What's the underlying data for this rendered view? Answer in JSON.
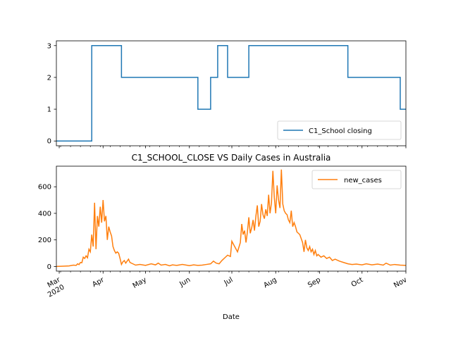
{
  "colors": {
    "school": "#1f77b4",
    "cases": "#ff7f0e",
    "axis": "#000000",
    "legend_border": "#cccccc"
  },
  "chart_data": [
    {
      "type": "line",
      "title": "",
      "xlabel": "",
      "ylabel": "",
      "x_range": [
        "2020-02-28",
        "2020-11-01"
      ],
      "ylim": [
        -0.15,
        3.15
      ],
      "yticks": [
        0,
        1,
        2,
        3
      ],
      "grid": false,
      "legend": "lower-right",
      "series": [
        {
          "name": "C1_School closing",
          "color": "#1f77b4",
          "step": true,
          "points": [
            [
              "2020-02-28",
              0
            ],
            [
              "2020-03-24",
              0
            ],
            [
              "2020-03-24",
              3
            ],
            [
              "2020-04-14",
              3
            ],
            [
              "2020-04-14",
              2
            ],
            [
              "2020-06-07",
              2
            ],
            [
              "2020-06-07",
              1
            ],
            [
              "2020-06-16",
              1
            ],
            [
              "2020-06-16",
              2
            ],
            [
              "2020-06-21",
              2
            ],
            [
              "2020-06-21",
              3
            ],
            [
              "2020-06-28",
              3
            ],
            [
              "2020-06-28",
              2
            ],
            [
              "2020-07-13",
              2
            ],
            [
              "2020-07-13",
              3
            ],
            [
              "2020-09-21",
              3
            ],
            [
              "2020-09-21",
              2
            ],
            [
              "2020-10-28",
              2
            ],
            [
              "2020-10-28",
              1
            ],
            [
              "2020-11-01",
              1
            ]
          ]
        }
      ]
    },
    {
      "type": "line",
      "title": "C1_SCHOOL_CLOSE VS Daily Cases in Australia",
      "xlabel": "Date",
      "ylabel": "",
      "x_range": [
        "2020-02-28",
        "2020-11-01"
      ],
      "ylim": [
        -35,
        755
      ],
      "yticks": [
        0,
        200,
        400,
        600
      ],
      "grid": false,
      "legend": "top-right",
      "x_tick_labels": [
        {
          "date": "2020-03-01",
          "label": "Mar",
          "sub": "2020"
        },
        {
          "date": "2020-04-01",
          "label": "Apr"
        },
        {
          "date": "2020-05-01",
          "label": "May"
        },
        {
          "date": "2020-06-01",
          "label": "Jun"
        },
        {
          "date": "2020-07-01",
          "label": "Jul"
        },
        {
          "date": "2020-08-01",
          "label": "Aug"
        },
        {
          "date": "2020-09-01",
          "label": "Sep"
        },
        {
          "date": "2020-10-01",
          "label": "Oct"
        },
        {
          "date": "2020-11-01",
          "label": "Nov"
        }
      ],
      "series": [
        {
          "name": "new_cases",
          "color": "#ff7f0e",
          "points": [
            [
              "2020-02-28",
              0
            ],
            [
              "2020-03-04",
              2
            ],
            [
              "2020-03-08",
              4
            ],
            [
              "2020-03-11",
              10
            ],
            [
              "2020-03-13",
              8
            ],
            [
              "2020-03-14",
              20
            ],
            [
              "2020-03-15",
              14
            ],
            [
              "2020-03-16",
              30
            ],
            [
              "2020-03-17",
              28
            ],
            [
              "2020-03-18",
              70
            ],
            [
              "2020-03-19",
              60
            ],
            [
              "2020-03-20",
              80
            ],
            [
              "2020-03-21",
              65
            ],
            [
              "2020-03-22",
              130
            ],
            [
              "2020-03-23",
              110
            ],
            [
              "2020-03-24",
              240
            ],
            [
              "2020-03-25",
              150
            ],
            [
              "2020-03-26",
              480
            ],
            [
              "2020-03-27",
              130
            ],
            [
              "2020-03-28",
              380
            ],
            [
              "2020-03-29",
              300
            ],
            [
              "2020-03-30",
              450
            ],
            [
              "2020-03-31",
              330
            ],
            [
              "2020-04-01",
              500
            ],
            [
              "2020-04-02",
              340
            ],
            [
              "2020-04-03",
              380
            ],
            [
              "2020-04-04",
              200
            ],
            [
              "2020-04-05",
              300
            ],
            [
              "2020-04-06",
              260
            ],
            [
              "2020-04-07",
              230
            ],
            [
              "2020-04-08",
              150
            ],
            [
              "2020-04-09",
              120
            ],
            [
              "2020-04-10",
              100
            ],
            [
              "2020-04-11",
              110
            ],
            [
              "2020-04-12",
              100
            ],
            [
              "2020-04-13",
              60
            ],
            [
              "2020-04-14",
              15
            ],
            [
              "2020-04-15",
              35
            ],
            [
              "2020-04-16",
              45
            ],
            [
              "2020-04-17",
              25
            ],
            [
              "2020-04-18",
              40
            ],
            [
              "2020-04-19",
              55
            ],
            [
              "2020-04-20",
              30
            ],
            [
              "2020-04-22",
              20
            ],
            [
              "2020-04-24",
              10
            ],
            [
              "2020-04-27",
              15
            ],
            [
              "2020-05-01",
              8
            ],
            [
              "2020-05-05",
              20
            ],
            [
              "2020-05-08",
              12
            ],
            [
              "2020-05-10",
              25
            ],
            [
              "2020-05-12",
              10
            ],
            [
              "2020-05-15",
              15
            ],
            [
              "2020-05-18",
              5
            ],
            [
              "2020-05-20",
              12
            ],
            [
              "2020-05-23",
              8
            ],
            [
              "2020-05-27",
              15
            ],
            [
              "2020-06-01",
              6
            ],
            [
              "2020-06-04",
              12
            ],
            [
              "2020-06-07",
              8
            ],
            [
              "2020-06-10",
              10
            ],
            [
              "2020-06-13",
              15
            ],
            [
              "2020-06-16",
              20
            ],
            [
              "2020-06-18",
              40
            ],
            [
              "2020-06-20",
              25
            ],
            [
              "2020-06-22",
              20
            ],
            [
              "2020-06-24",
              45
            ],
            [
              "2020-06-26",
              65
            ],
            [
              "2020-06-28",
              85
            ],
            [
              "2020-06-30",
              75
            ],
            [
              "2020-07-01",
              190
            ],
            [
              "2020-07-03",
              150
            ],
            [
              "2020-07-05",
              110
            ],
            [
              "2020-07-07",
              180
            ],
            [
              "2020-07-08",
              320
            ],
            [
              "2020-07-09",
              240
            ],
            [
              "2020-07-10",
              270
            ],
            [
              "2020-07-11",
              180
            ],
            [
              "2020-07-12",
              260
            ],
            [
              "2020-07-13",
              370
            ],
            [
              "2020-07-14",
              250
            ],
            [
              "2020-07-15",
              290
            ],
            [
              "2020-07-16",
              350
            ],
            [
              "2020-07-17",
              270
            ],
            [
              "2020-07-18",
              380
            ],
            [
              "2020-07-19",
              460
            ],
            [
              "2020-07-20",
              300
            ],
            [
              "2020-07-21",
              340
            ],
            [
              "2020-07-22",
              470
            ],
            [
              "2020-07-23",
              390
            ],
            [
              "2020-07-24",
              360
            ],
            [
              "2020-07-25",
              430
            ],
            [
              "2020-07-26",
              380
            ],
            [
              "2020-07-27",
              540
            ],
            [
              "2020-07-28",
              400
            ],
            [
              "2020-07-29",
              480
            ],
            [
              "2020-07-30",
              720
            ],
            [
              "2020-07-31",
              520
            ],
            [
              "2020-08-01",
              400
            ],
            [
              "2020-08-02",
              610
            ],
            [
              "2020-08-03",
              500
            ],
            [
              "2020-08-04",
              440
            ],
            [
              "2020-08-05",
              730
            ],
            [
              "2020-08-06",
              470
            ],
            [
              "2020-08-07",
              420
            ],
            [
              "2020-08-08",
              400
            ],
            [
              "2020-08-09",
              390
            ],
            [
              "2020-08-10",
              350
            ],
            [
              "2020-08-11",
              330
            ],
            [
              "2020-08-12",
              420
            ],
            [
              "2020-08-13",
              300
            ],
            [
              "2020-08-14",
              330
            ],
            [
              "2020-08-15",
              300
            ],
            [
              "2020-08-16",
              260
            ],
            [
              "2020-08-17",
              250
            ],
            [
              "2020-08-18",
              240
            ],
            [
              "2020-08-19",
              210
            ],
            [
              "2020-08-20",
              180
            ],
            [
              "2020-08-21",
              110
            ],
            [
              "2020-08-22",
              200
            ],
            [
              "2020-08-23",
              140
            ],
            [
              "2020-08-24",
              120
            ],
            [
              "2020-08-25",
              150
            ],
            [
              "2020-08-26",
              110
            ],
            [
              "2020-08-27",
              130
            ],
            [
              "2020-08-28",
              90
            ],
            [
              "2020-08-29",
              120
            ],
            [
              "2020-08-30",
              80
            ],
            [
              "2020-08-31",
              90
            ],
            [
              "2020-09-02",
              70
            ],
            [
              "2020-09-04",
              80
            ],
            [
              "2020-09-06",
              60
            ],
            [
              "2020-09-08",
              70
            ],
            [
              "2020-09-10",
              45
            ],
            [
              "2020-09-12",
              55
            ],
            [
              "2020-09-15",
              40
            ],
            [
              "2020-09-18",
              30
            ],
            [
              "2020-09-21",
              20
            ],
            [
              "2020-09-24",
              15
            ],
            [
              "2020-09-27",
              18
            ],
            [
              "2020-10-01",
              12
            ],
            [
              "2020-10-04",
              20
            ],
            [
              "2020-10-08",
              12
            ],
            [
              "2020-10-12",
              18
            ],
            [
              "2020-10-16",
              10
            ],
            [
              "2020-10-18",
              25
            ],
            [
              "2020-10-21",
              10
            ],
            [
              "2020-10-24",
              15
            ],
            [
              "2020-10-28",
              10
            ],
            [
              "2020-11-01",
              8
            ]
          ]
        }
      ]
    }
  ]
}
